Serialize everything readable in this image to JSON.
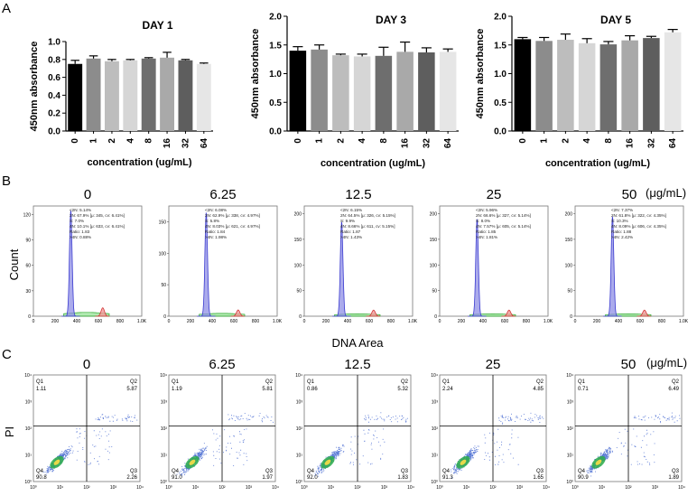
{
  "panel_labels": {
    "a": "A",
    "b": "B",
    "c": "C"
  },
  "colors": {
    "blue": "#3b3bd0",
    "green": "#2ea82e",
    "red": "#d33a3a",
    "scatter": "#1f49c7"
  },
  "chart_data": [
    {
      "type": "bar",
      "title": "DAY 1",
      "xlabel": "concentration (ug/mL)",
      "ylabel": "450nm absorbance",
      "categories": [
        "0",
        "1",
        "2",
        "4",
        "8",
        "16",
        "32",
        "64"
      ],
      "values": [
        0.75,
        0.81,
        0.78,
        0.79,
        0.81,
        0.82,
        0.79,
        0.75
      ],
      "errors": [
        0.04,
        0.03,
        0.02,
        0.01,
        0.01,
        0.06,
        0.01,
        0.01
      ],
      "colors": [
        "#000000",
        "#8c8c8c",
        "#bdbdbd",
        "#d6d6d6",
        "#6e6e6e",
        "#a9a9a9",
        "#5e5e5e",
        "#e6e6e6"
      ],
      "ylim": [
        0,
        1.0
      ],
      "yticks": [
        "0.0",
        "0.2",
        "0.4",
        "0.6",
        "0.8",
        "1.0"
      ]
    },
    {
      "type": "bar",
      "title": "DAY 3",
      "xlabel": "concentration (ug/mL)",
      "ylabel": "450nm absorbance",
      "categories": [
        "0",
        "1",
        "2",
        "4",
        "8",
        "16",
        "32",
        "64"
      ],
      "values": [
        1.4,
        1.42,
        1.32,
        1.3,
        1.31,
        1.38,
        1.37,
        1.38
      ],
      "errors": [
        0.07,
        0.08,
        0.02,
        0.04,
        0.15,
        0.17,
        0.08,
        0.05
      ],
      "colors": [
        "#000000",
        "#8c8c8c",
        "#bdbdbd",
        "#d6d6d6",
        "#6e6e6e",
        "#a9a9a9",
        "#5e5e5e",
        "#e6e6e6"
      ],
      "ylim": [
        0,
        2.0
      ],
      "yticks": [
        "0.0",
        "0.5",
        "1.0",
        "1.5",
        "2.0"
      ]
    },
    {
      "type": "bar",
      "title": "DAY 5",
      "xlabel": "concentration (ug/mL)",
      "ylabel": "450nm absorbance",
      "categories": [
        "0",
        "1",
        "2",
        "4",
        "8",
        "16",
        "32",
        "64"
      ],
      "values": [
        1.6,
        1.57,
        1.59,
        1.53,
        1.51,
        1.58,
        1.62,
        1.72
      ],
      "errors": [
        0.03,
        0.06,
        0.1,
        0.08,
        0.05,
        0.08,
        0.03,
        0.05
      ],
      "colors": [
        "#000000",
        "#8c8c8c",
        "#bdbdbd",
        "#d6d6d6",
        "#6e6e6e",
        "#a9a9a9",
        "#5e5e5e",
        "#e6e6e6"
      ],
      "ylim": [
        0,
        2.0
      ],
      "yticks": [
        "0.0",
        "0.5",
        "1.0",
        "1.5",
        "2.0"
      ]
    }
  ],
  "cell_cycle": {
    "ylabel": "Count",
    "xlabel": "DNA Area",
    "unit": "(μg/mL)",
    "xticks": [
      "0",
      "200",
      "400",
      "600",
      "800",
      "1.0K"
    ],
    "panels": [
      {
        "conc": "0",
        "yticks": [
          "0",
          "30",
          "60",
          "90",
          "120"
        ],
        "ymax": 130,
        "peak1": 125,
        "peak2": 10,
        "stats": [
          "<2N: 5.14%",
          "2N: 67.9%  [μ: 345, cv: 6.41%]",
          "S: 7.0%",
          "4N: 10.1%  [μ: 633, cv: 6.41%]",
          "Ratio: 1.83",
          ">4N: 0.88%"
        ]
      },
      {
        "conc": "6.25",
        "yticks": [
          "0",
          "50",
          "100",
          "150"
        ],
        "ymax": 175,
        "peak1": 165,
        "peak2": 10,
        "stats": [
          "<2N: 6.08%",
          "2N: 62.9%  [μ: 338, cv: 4.97%]",
          "S: 5.8%",
          "4N: 8.03%  [μ: 621, cv: 4.97%]",
          "Ratio: 1.84",
          ">4N: 1.98%"
        ]
      },
      {
        "conc": "12.5",
        "yticks": [
          "0",
          "50",
          "100",
          "150",
          "200"
        ],
        "ymax": 215,
        "peak1": 185,
        "peak2": 12,
        "stats": [
          "<2N: 6.15%",
          "2N: 64.5%  [μ: 326, cv: 5.15%]",
          "S: 9.9%",
          "4N: 8.66%  [μ: 611, cv: 5.15%]",
          "Ratio: 1.87",
          ">4N: 1.43%"
        ]
      },
      {
        "conc": "25",
        "yticks": [
          "0",
          "50",
          "100",
          "150",
          "200"
        ],
        "ymax": 215,
        "peak1": 190,
        "peak2": 12,
        "stats": [
          "<2N: 5.96%",
          "2N: 66.6%  [μ: 327, cv: 5.14%]",
          "S: 8.0%",
          "4N: 7.57%  [μ: 605, cv: 5.14%]",
          "Ratio: 1.85",
          ">4N: 1.81%"
        ]
      },
      {
        "conc": "50",
        "yticks": [
          "0",
          "50",
          "100",
          "150",
          "200"
        ],
        "ymax": 215,
        "peak1": 195,
        "peak2": 12,
        "stats": [
          "<2N: 7.37%",
          "2N: 61.8%  [μ: 322, cv: 4.35%]",
          "S: 10.3%",
          "4N: 8.09%  [μ: 606, cv: 4.35%]",
          "Ratio: 1.88",
          ">4N: 2.42%"
        ]
      }
    ]
  },
  "apoptosis": {
    "ylabel": "PI",
    "unit": "(μg/mL)",
    "xticks": [
      "10⁰",
      "10¹",
      "10²",
      "10³",
      "10⁴"
    ],
    "yticks": [
      "10⁰",
      "10¹",
      "10²",
      "10³",
      "10⁴"
    ],
    "panels": [
      {
        "conc": "0",
        "q1": "1.11",
        "q2": "5.87",
        "q3": "2.26",
        "q4": "90.8"
      },
      {
        "conc": "6.25",
        "q1": "1.19",
        "q2": "5.81",
        "q3": "1.97",
        "q4": "91.0"
      },
      {
        "conc": "12.5",
        "q1": "0.86",
        "q2": "5.32",
        "q3": "1.83",
        "q4": "92.0"
      },
      {
        "conc": "25",
        "q1": "2.24",
        "q2": "4.85",
        "q3": "1.65",
        "q4": "91.3"
      },
      {
        "conc": "50",
        "q1": "0.71",
        "q2": "6.49",
        "q3": "1.89",
        "q4": "90.9"
      }
    ],
    "quad_labels": {
      "q1": "Q1",
      "q2": "Q2",
      "q3": "Q3",
      "q4": "Q4"
    }
  }
}
